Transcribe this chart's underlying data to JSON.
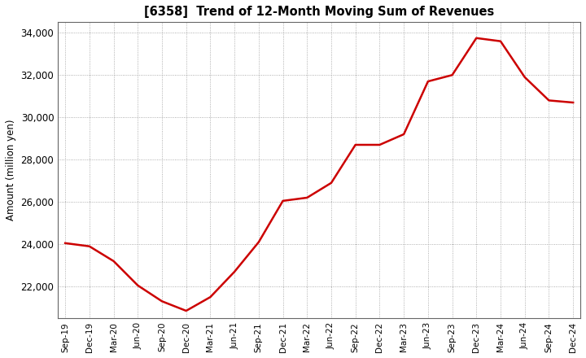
{
  "title": "[6358]  Trend of 12-Month Moving Sum of Revenues",
  "ylabel": "Amount (million yen)",
  "line_color": "#CC0000",
  "line_width": 1.8,
  "background_color": "#FFFFFF",
  "plot_bg_color": "#FFFFFF",
  "grid_color": "#999999",
  "ylim": [
    20500,
    34500
  ],
  "yticks": [
    22000,
    24000,
    26000,
    28000,
    30000,
    32000,
    34000
  ],
  "labels": [
    "Sep-19",
    "Dec-19",
    "Mar-20",
    "Jun-20",
    "Sep-20",
    "Dec-20",
    "Mar-21",
    "Jun-21",
    "Sep-21",
    "Dec-21",
    "Mar-22",
    "Jun-22",
    "Sep-22",
    "Dec-22",
    "Mar-23",
    "Jun-23",
    "Sep-23",
    "Dec-23",
    "Mar-24",
    "Jun-24",
    "Sep-24",
    "Dec-24"
  ],
  "values": [
    24050,
    23900,
    23200,
    22050,
    21300,
    20850,
    21500,
    22700,
    24100,
    26050,
    26200,
    26900,
    28700,
    28700,
    29200,
    31700,
    32000,
    33750,
    33600,
    31900,
    30800,
    30700
  ]
}
